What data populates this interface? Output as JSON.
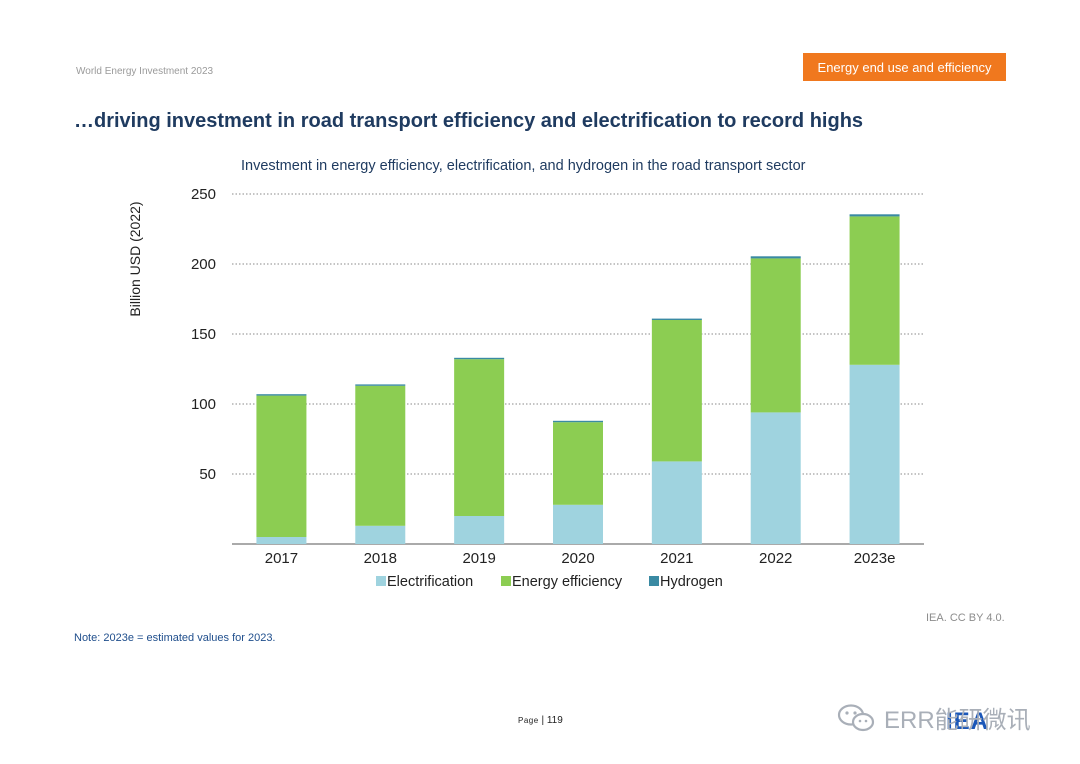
{
  "header": {
    "report_name": "World Energy Investment 2023",
    "section_tag": "Energy end use and efficiency",
    "section_color": "#f0781e",
    "title": "…driving investment in road transport efficiency and electrification to record highs"
  },
  "chart_data": {
    "type": "bar",
    "stacked": true,
    "title": "Investment in energy efficiency, electrification, and hydrogen in the road transport sector",
    "ylabel": "Billion USD (2022)",
    "xlabel": "",
    "ylim": [
      0,
      250
    ],
    "yticks": [
      50,
      100,
      150,
      200,
      250
    ],
    "grid": "horizontal dotted",
    "legend_position": "bottom",
    "categories": [
      "2017",
      "2018",
      "2019",
      "2020",
      "2021",
      "2022",
      "2023e"
    ],
    "series": [
      {
        "name": "Electrification",
        "color": "#9fd3df",
        "values": [
          5,
          13,
          20,
          28,
          59,
          94,
          128
        ]
      },
      {
        "name": "Energy efficiency",
        "color": "#8ccd52",
        "values": [
          101,
          100,
          112,
          59,
          101,
          110,
          106
        ]
      },
      {
        "name": "Hydrogen",
        "color": "#3a8aa3",
        "values": [
          1,
          1,
          1,
          1,
          1,
          1.5,
          1.5
        ]
      }
    ]
  },
  "footer": {
    "note": "Note: 2023e = estimated values for 2023.",
    "source": "IEA. CC BY 4.0.",
    "page_label": "Page",
    "page_number": "119",
    "logo": "IEA",
    "watermark": "ERR能研微讯"
  }
}
